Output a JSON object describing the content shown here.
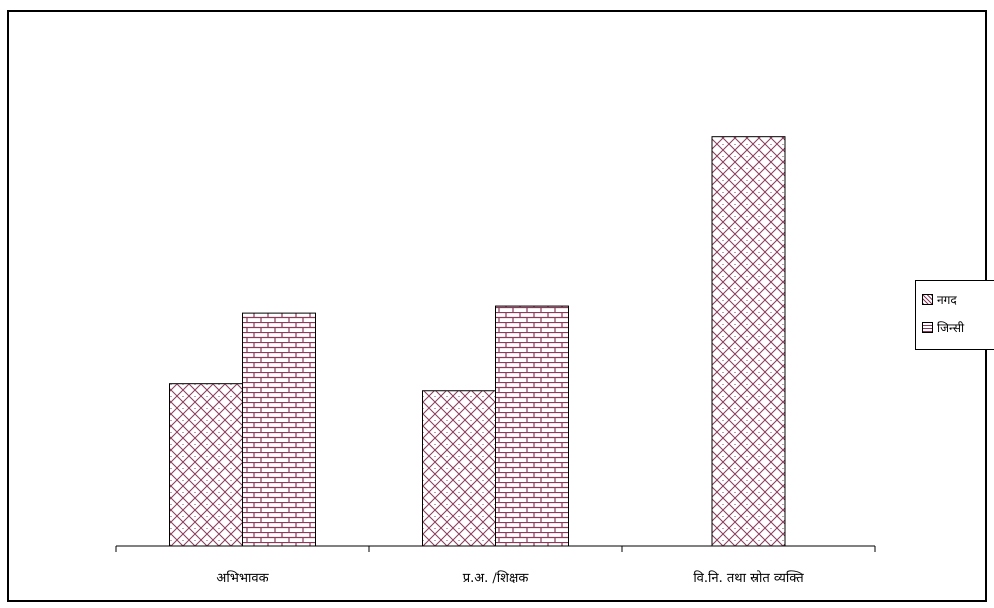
{
  "chart_data": {
    "type": "bar",
    "title": "",
    "xlabel": "",
    "ylabel": "",
    "categories": [
      "अभिभावक",
      "प्र.अ. /शिक्षक",
      "वि.नि. तथा स्रोत व्यक्ति"
    ],
    "series": [
      {
        "name": "नगद",
        "values": [
          23,
          22,
          58
        ],
        "color": "#8b3a5a",
        "pattern": "crosshatch"
      },
      {
        "name": "जिन्सी",
        "values": [
          33,
          34,
          0
        ],
        "color": "#8b3a5a",
        "pattern": "brick"
      }
    ],
    "ylim": [
      0,
      70
    ],
    "grid": false,
    "legend_position": "right",
    "y_axis_visible": false
  }
}
